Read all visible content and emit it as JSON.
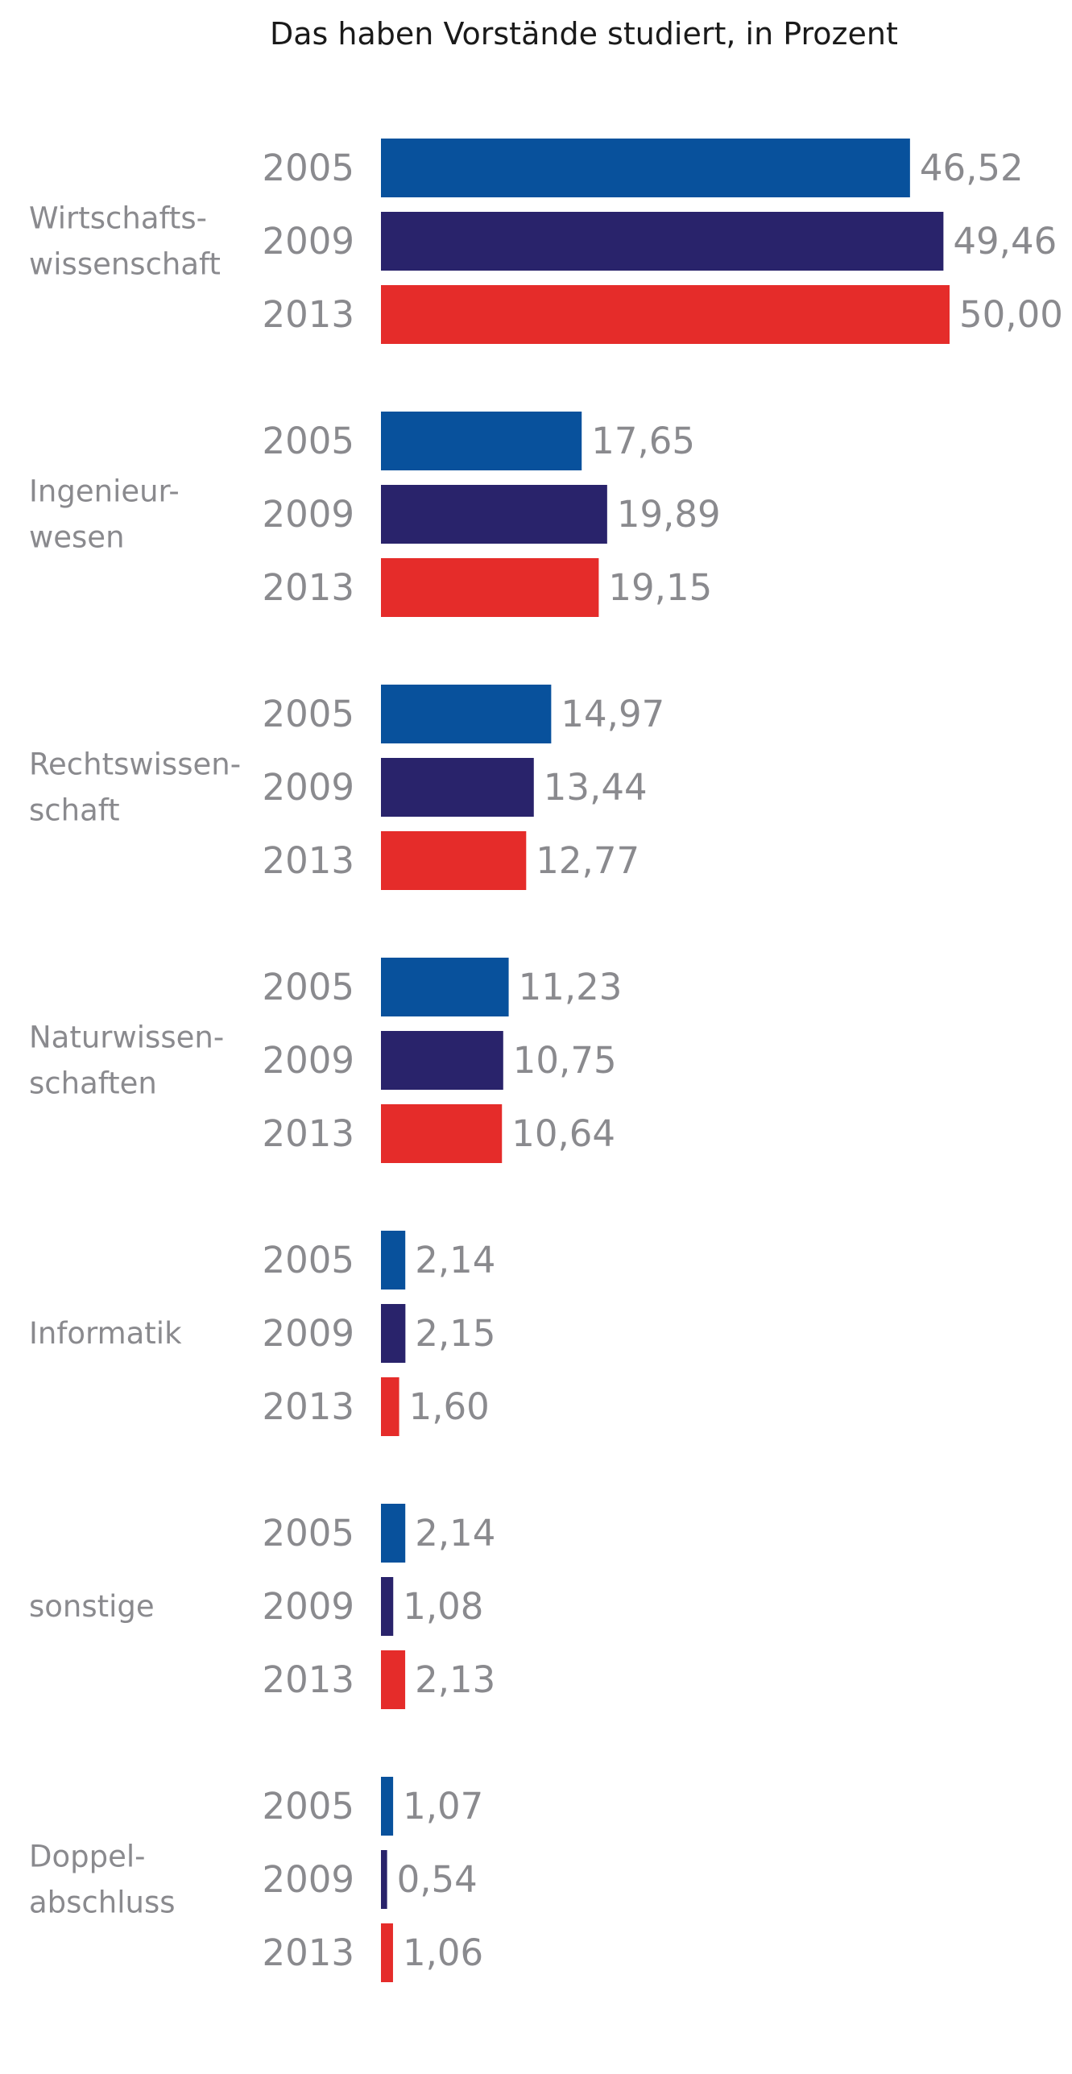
{
  "chart_data": {
    "type": "bar",
    "orientation": "horizontal",
    "title": "Das haben Vorstände studiert, in Prozent",
    "categories": [
      {
        "lines": [
          "Wirtschafts-",
          "wissenschaft"
        ],
        "values": [
          46.52,
          49.46,
          50.0
        ],
        "labels": [
          "46,52",
          "49,46",
          "50,00"
        ]
      },
      {
        "lines": [
          "Ingenieur-",
          "wesen"
        ],
        "values": [
          17.65,
          19.89,
          19.15
        ],
        "labels": [
          "17,65",
          "19,89",
          "19,15"
        ]
      },
      {
        "lines": [
          "Rechtswissen-",
          "schaft"
        ],
        "values": [
          14.97,
          13.44,
          12.77
        ],
        "labels": [
          "14,97",
          "13,44",
          "12,77"
        ]
      },
      {
        "lines": [
          "Naturwissen-",
          "schaften"
        ],
        "values": [
          11.23,
          10.75,
          10.64
        ],
        "labels": [
          "11,23",
          "10,75",
          "10,64"
        ]
      },
      {
        "lines": [
          "Informatik"
        ],
        "values": [
          2.14,
          2.15,
          1.6
        ],
        "labels": [
          "2,14",
          "2,15",
          "1,60"
        ]
      },
      {
        "lines": [
          "sonstige"
        ],
        "values": [
          2.14,
          1.08,
          2.13
        ],
        "labels": [
          "2,14",
          "1,08",
          "2,13"
        ]
      },
      {
        "lines": [
          "Doppel-",
          "abschluss"
        ],
        "values": [
          1.07,
          0.54,
          1.06
        ],
        "labels": [
          "1,07",
          "0,54",
          "1,06"
        ]
      }
    ],
    "series": [
      {
        "year": "2005",
        "color": "#08519c"
      },
      {
        "year": "2009",
        "color": "#29236b"
      },
      {
        "year": "2013",
        "color": "#e52c2a"
      }
    ],
    "xlim": [
      0,
      50
    ],
    "grid": false,
    "legend": "none"
  }
}
